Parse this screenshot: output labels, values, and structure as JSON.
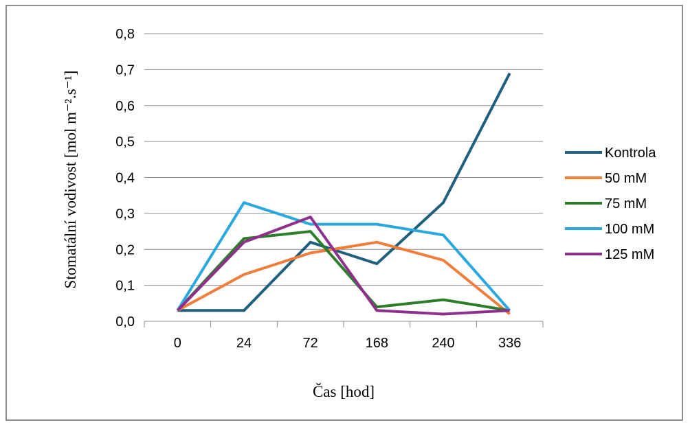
{
  "chart_data": {
    "type": "line",
    "categories": [
      "0",
      "24",
      "72",
      "168",
      "240",
      "336"
    ],
    "xlabel": "Čas [hod]",
    "ylabel": "Stomatální vodivost [mol m⁻².s⁻¹]",
    "ylim": [
      0,
      0.8
    ],
    "yticks": [
      "0,0",
      "0,1",
      "0,2",
      "0,3",
      "0,4",
      "0,5",
      "0,6",
      "0,7",
      "0,8"
    ],
    "grid": true,
    "legend_position": "right",
    "series": [
      {
        "name": "Kontrola",
        "color": "#1f5f7f",
        "values": [
          0.03,
          0.03,
          0.22,
          0.16,
          0.33,
          0.69
        ]
      },
      {
        "name": "50 mM",
        "color": "#f07d3a",
        "values": [
          0.03,
          0.13,
          0.19,
          0.22,
          0.17,
          0.02
        ]
      },
      {
        "name": "75 mM",
        "color": "#2d7d2a",
        "values": [
          0.03,
          0.23,
          0.25,
          0.04,
          0.06,
          0.03
        ]
      },
      {
        "name": "100 mM",
        "color": "#29a8df",
        "values": [
          0.03,
          0.33,
          0.27,
          0.27,
          0.24,
          0.03
        ]
      },
      {
        "name": "125 mM",
        "color": "#8e2f8e",
        "values": [
          0.03,
          0.22,
          0.29,
          0.03,
          0.02,
          0.03
        ]
      }
    ]
  }
}
